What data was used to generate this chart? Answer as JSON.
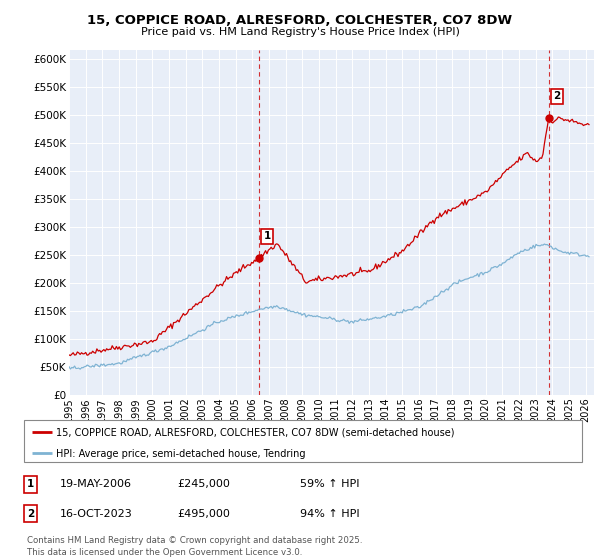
{
  "title": "15, COPPICE ROAD, ALRESFORD, COLCHESTER, CO7 8DW",
  "subtitle": "Price paid vs. HM Land Registry's House Price Index (HPI)",
  "yticks": [
    0,
    50000,
    100000,
    150000,
    200000,
    250000,
    300000,
    350000,
    400000,
    450000,
    500000,
    550000,
    600000
  ],
  "xlim_start": 1995.0,
  "xlim_end": 2026.5,
  "ylim_min": 0,
  "ylim_max": 615000,
  "sale1_x": 2006.38,
  "sale1_y": 245000,
  "sale2_x": 2023.79,
  "sale2_y": 495000,
  "red_line_color": "#cc0000",
  "blue_line_color": "#7fb3d3",
  "background_color": "#e8eef8",
  "legend_line1": "15, COPPICE ROAD, ALRESFORD, COLCHESTER, CO7 8DW (semi-detached house)",
  "legend_line2": "HPI: Average price, semi-detached house, Tendring",
  "footer": "Contains HM Land Registry data © Crown copyright and database right 2025.\nThis data is licensed under the Open Government Licence v3.0."
}
